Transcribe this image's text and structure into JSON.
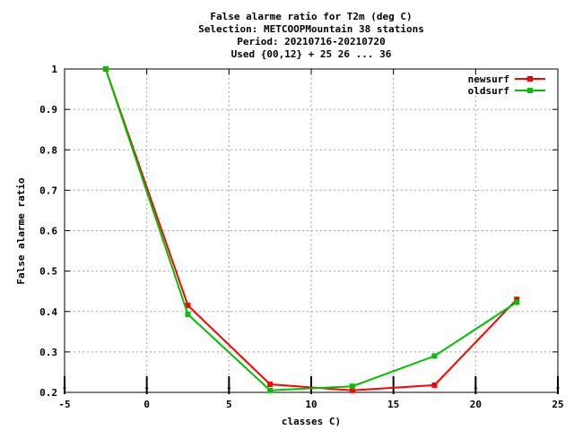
{
  "chart_data": {
    "type": "line",
    "title_lines": [
      "False alarme ratio  for T2m (deg C)",
      "Selection: METCOOPMountain     38 stations",
      "Period: 20210716-20210720",
      "Used {00,12} + 25 26 ... 36"
    ],
    "xlabel": "classes C)",
    "ylabel": "False alarme ratio",
    "xlim": [
      -5,
      25
    ],
    "ylim": [
      0.2,
      1
    ],
    "xticks": [
      "-5",
      "0",
      "5",
      "10",
      "15",
      "20",
      "25"
    ],
    "yticks": [
      "0.2",
      "0.3",
      "0.4",
      "0.5",
      "0.6",
      "0.7",
      "0.8",
      "0.9",
      "1"
    ],
    "grid": true,
    "legend_position": "top-right",
    "class_markers_x": [
      -5,
      0,
      5,
      10,
      15,
      20,
      25
    ],
    "x": [
      -2.5,
      2.5,
      7.5,
      12.5,
      17.5,
      22.5
    ],
    "series": [
      {
        "name": "newsurf",
        "color": "#ff0000",
        "x": [
          -2.5,
          2.5,
          7.5,
          12.5,
          17.5,
          22.5
        ],
        "values": [
          1.0,
          0.415,
          0.22,
          0.205,
          0.218,
          0.43
        ]
      },
      {
        "name": "oldsurf",
        "color": "#00c000",
        "x": [
          -2.5,
          2.5,
          7.5,
          12.5,
          17.5,
          22.5
        ],
        "values": [
          1.0,
          0.393,
          0.205,
          0.215,
          0.29,
          0.423
        ]
      }
    ]
  }
}
